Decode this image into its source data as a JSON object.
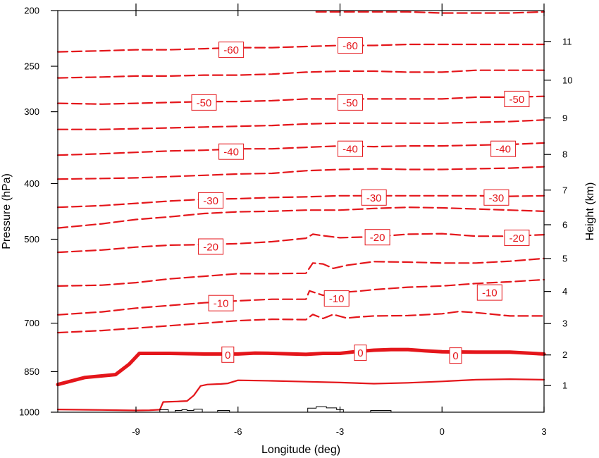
{
  "chart_data": {
    "type": "contour",
    "title": "",
    "xlabel": "Longitude (deg)",
    "ylabel_left": "Pressure (hPa)",
    "ylabel_right": "Height (km)",
    "x_range": [
      -11.3,
      3.0
    ],
    "pressure_range": [
      1000,
      200
    ],
    "y_scale_left": "log-pressure",
    "x_ticks": [
      "-9",
      "-6",
      "-3",
      "0",
      "3"
    ],
    "x_tick_values": [
      -9,
      -6,
      -3,
      0,
      3
    ],
    "pressure_ticks": [
      "200",
      "250",
      "300",
      "400",
      "500",
      "700",
      "850",
      "1000"
    ],
    "pressure_tick_values": [
      200,
      250,
      300,
      400,
      500,
      700,
      850,
      1000
    ],
    "height_ticks": [
      "1",
      "2",
      "3",
      "4",
      "5",
      "6",
      "7",
      "8",
      "9",
      "10",
      "11"
    ],
    "height_tick_values": [
      1,
      2,
      3,
      4,
      5,
      6,
      7,
      8,
      9,
      10,
      11
    ],
    "line_color": "#e4161b",
    "terrain_color": "#000000",
    "contours": [
      {
        "value": 5,
        "style": "solid",
        "points": [
          [
            -11.3,
            989
          ],
          [
            -10,
            991
          ],
          [
            -9,
            993
          ],
          [
            -8.6,
            992
          ],
          [
            -8.3,
            990
          ],
          [
            -8.2,
            960
          ],
          [
            -7.8,
            958
          ],
          [
            -7.5,
            956
          ],
          [
            -7.3,
            935
          ],
          [
            -7.1,
            900
          ],
          [
            -6.9,
            895
          ],
          [
            -6.5,
            893
          ],
          [
            -6.3,
            891
          ],
          [
            -6,
            880
          ],
          [
            -5,
            882
          ],
          [
            -4,
            885
          ],
          [
            -3,
            888
          ],
          [
            -2,
            892
          ],
          [
            -1,
            889
          ],
          [
            0,
            884
          ],
          [
            1,
            878
          ],
          [
            2,
            876
          ],
          [
            3,
            878
          ]
        ]
      },
      {
        "value": 0,
        "style": "bold",
        "points": [
          [
            -11.3,
            895
          ],
          [
            -10.5,
            870
          ],
          [
            -9.6,
            860
          ],
          [
            -9.2,
            825
          ],
          [
            -8.9,
            790
          ],
          [
            -8,
            790
          ],
          [
            -7,
            792
          ],
          [
            -6,
            792
          ],
          [
            -5.5,
            789
          ],
          [
            -5,
            790
          ],
          [
            -4,
            793
          ],
          [
            -3.5,
            790
          ],
          [
            -3,
            790
          ],
          [
            -2.5,
            784
          ],
          [
            -2,
            780
          ],
          [
            -1.5,
            778
          ],
          [
            -1,
            778
          ],
          [
            -0.5,
            782
          ],
          [
            0,
            785
          ],
          [
            1,
            786
          ],
          [
            2,
            786
          ],
          [
            3,
            792
          ]
        ]
      },
      {
        "value": -5,
        "style": "dashed",
        "points": [
          [
            -11.3,
            727
          ],
          [
            -10,
            721
          ],
          [
            -9,
            714
          ],
          [
            -8,
            707
          ],
          [
            -7,
            700
          ],
          [
            -6,
            693
          ],
          [
            -5,
            689
          ],
          [
            -4,
            690
          ],
          [
            -3.8,
            676
          ],
          [
            -3.5,
            687
          ],
          [
            -3.2,
            676
          ],
          [
            -2.8,
            686
          ],
          [
            -2.5,
            683
          ],
          [
            -2,
            680
          ],
          [
            -1,
            679
          ],
          [
            0,
            674
          ],
          [
            0.5,
            668
          ],
          [
            1,
            671
          ],
          [
            2,
            680
          ],
          [
            3,
            680
          ]
        ]
      },
      {
        "value": -10,
        "style": "dashed",
        "points": [
          [
            -11.3,
            677
          ],
          [
            -10,
            669
          ],
          [
            -9,
            659
          ],
          [
            -8,
            652
          ],
          [
            -7,
            645
          ],
          [
            -6,
            640
          ],
          [
            -5,
            636
          ],
          [
            -4,
            636
          ],
          [
            -3.9,
            615
          ],
          [
            -3.5,
            626
          ],
          [
            -3,
            619
          ],
          [
            -2.5,
            616
          ],
          [
            -2,
            612
          ],
          [
            -1,
            606
          ],
          [
            0,
            603
          ],
          [
            1,
            597
          ],
          [
            2,
            593
          ],
          [
            3,
            588
          ]
        ]
      },
      {
        "value": -15,
        "style": "dashed",
        "points": [
          [
            -11.3,
            603
          ],
          [
            -10,
            601
          ],
          [
            -9,
            595
          ],
          [
            -8,
            586
          ],
          [
            -7,
            580
          ],
          [
            -6,
            574
          ],
          [
            -5,
            574
          ],
          [
            -4,
            573
          ],
          [
            -3.8,
            550
          ],
          [
            -3.5,
            552
          ],
          [
            -3.2,
            562
          ],
          [
            -2.8,
            555
          ],
          [
            -2,
            547
          ],
          [
            -1,
            548
          ],
          [
            0,
            550
          ],
          [
            1,
            550
          ],
          [
            2,
            546
          ],
          [
            3,
            540
          ]
        ]
      },
      {
        "value": -20,
        "style": "dashed",
        "points": [
          [
            -11.3,
            527
          ],
          [
            -10,
            522
          ],
          [
            -9,
            516
          ],
          [
            -8,
            512
          ],
          [
            -7,
            511
          ],
          [
            -6,
            509
          ],
          [
            -5,
            505
          ],
          [
            -4,
            498
          ],
          [
            -3.8,
            490
          ],
          [
            -3.5,
            493
          ],
          [
            -3,
            497
          ],
          [
            -2,
            495
          ],
          [
            -1,
            490
          ],
          [
            0,
            489
          ],
          [
            1,
            494
          ],
          [
            2,
            494
          ],
          [
            3,
            491
          ]
        ]
      },
      {
        "value": -25,
        "style": "dashed",
        "points": [
          [
            -11.3,
            478
          ],
          [
            -10,
            470
          ],
          [
            -9,
            462
          ],
          [
            -8,
            457
          ],
          [
            -7,
            451
          ],
          [
            -6,
            448
          ],
          [
            -5,
            447
          ],
          [
            -4,
            445
          ],
          [
            -3,
            445
          ],
          [
            -2,
            442
          ],
          [
            -1,
            440
          ],
          [
            0,
            441
          ],
          [
            1,
            443
          ],
          [
            2,
            445
          ],
          [
            3,
            447
          ]
        ]
      },
      {
        "value": -30,
        "style": "dashed",
        "points": [
          [
            -11.3,
            440
          ],
          [
            -10,
            437
          ],
          [
            -9,
            433
          ],
          [
            -8,
            429
          ],
          [
            -7,
            426
          ],
          [
            -6,
            425
          ],
          [
            -5,
            423
          ],
          [
            -4,
            422
          ],
          [
            -3,
            420
          ],
          [
            -2,
            420
          ],
          [
            -1,
            420
          ],
          [
            0,
            420
          ],
          [
            1,
            420
          ],
          [
            2,
            421
          ],
          [
            3,
            420
          ]
        ]
      },
      {
        "value": -35,
        "style": "dashed",
        "points": [
          [
            -11.3,
            393
          ],
          [
            -10,
            392
          ],
          [
            -9,
            391
          ],
          [
            -8,
            389
          ],
          [
            -7,
            387
          ],
          [
            -6,
            385
          ],
          [
            -5,
            384
          ],
          [
            -4,
            380
          ],
          [
            -3,
            378
          ],
          [
            -2,
            377
          ],
          [
            -1,
            378
          ],
          [
            0,
            378
          ],
          [
            1,
            377
          ],
          [
            2,
            376
          ],
          [
            3,
            374
          ]
        ]
      },
      {
        "value": -40,
        "style": "dashed",
        "points": [
          [
            -11.3,
            357
          ],
          [
            -10,
            355
          ],
          [
            -9,
            353
          ],
          [
            -8,
            351
          ],
          [
            -7,
            350
          ],
          [
            -6,
            348
          ],
          [
            -5,
            348
          ],
          [
            -4,
            346
          ],
          [
            -3,
            344
          ],
          [
            -2,
            345
          ],
          [
            -1,
            344
          ],
          [
            0,
            344
          ],
          [
            1,
            343
          ],
          [
            2,
            342
          ],
          [
            3,
            340
          ]
        ]
      },
      {
        "value": -45,
        "style": "dashed",
        "points": [
          [
            -11.3,
            322
          ],
          [
            -10,
            322
          ],
          [
            -9,
            321
          ],
          [
            -8,
            320
          ],
          [
            -7,
            319
          ],
          [
            -6,
            318
          ],
          [
            -5,
            317
          ],
          [
            -4,
            315
          ],
          [
            -3,
            314
          ],
          [
            -2,
            314
          ],
          [
            -1,
            314
          ],
          [
            0,
            314
          ],
          [
            1,
            313
          ],
          [
            2,
            312
          ],
          [
            3,
            310
          ]
        ]
      },
      {
        "value": -50,
        "style": "dashed",
        "points": [
          [
            -11.3,
            290
          ],
          [
            -10,
            291
          ],
          [
            -9,
            290
          ],
          [
            -8,
            289
          ],
          [
            -7,
            288
          ],
          [
            -6,
            288
          ],
          [
            -5,
            287
          ],
          [
            -4,
            285
          ],
          [
            -3,
            285
          ],
          [
            -2,
            285
          ],
          [
            -1,
            285
          ],
          [
            0,
            285
          ],
          [
            1,
            283
          ],
          [
            2,
            283
          ],
          [
            3,
            282
          ]
        ]
      },
      {
        "value": -55,
        "style": "dashed",
        "points": [
          [
            -11.3,
            262
          ],
          [
            -10,
            261
          ],
          [
            -9,
            260
          ],
          [
            -8,
            260
          ],
          [
            -7,
            259
          ],
          [
            -6,
            259
          ],
          [
            -5,
            258
          ],
          [
            -4,
            256
          ],
          [
            -3,
            255
          ],
          [
            -2,
            255
          ],
          [
            -1,
            256
          ],
          [
            0,
            256
          ],
          [
            1,
            254
          ],
          [
            2,
            254
          ],
          [
            3,
            254
          ]
        ]
      },
      {
        "value": -60,
        "style": "dashed",
        "points": [
          [
            -11.3,
            236
          ],
          [
            -10,
            235
          ],
          [
            -9,
            234
          ],
          [
            -8,
            234
          ],
          [
            -7,
            233
          ],
          [
            -6,
            232
          ],
          [
            -5,
            232
          ],
          [
            -4,
            231
          ],
          [
            -3,
            230
          ],
          [
            -2,
            230
          ],
          [
            -1,
            229
          ],
          [
            0,
            229
          ],
          [
            1,
            229
          ],
          [
            2,
            229
          ],
          [
            3,
            229
          ]
        ]
      },
      {
        "value": -65,
        "style": "dashed",
        "points": [
          [
            -3.7,
            201
          ],
          [
            -3,
            201
          ],
          [
            -1,
            201
          ],
          [
            0,
            202
          ],
          [
            1,
            202
          ],
          [
            2,
            202
          ],
          [
            3,
            201
          ]
        ]
      }
    ],
    "contour_labels": [
      {
        "text": "-60",
        "x": -6.2,
        "p": 234
      },
      {
        "text": "-60",
        "x": -2.7,
        "p": 230
      },
      {
        "text": "-50",
        "x": -7.0,
        "p": 289
      },
      {
        "text": "-50",
        "x": -2.7,
        "p": 289
      },
      {
        "text": "-50",
        "x": 2.2,
        "p": 285
      },
      {
        "text": "-40",
        "x": -6.2,
        "p": 352
      },
      {
        "text": "-40",
        "x": -2.7,
        "p": 348
      },
      {
        "text": "-40",
        "x": 1.8,
        "p": 348
      },
      {
        "text": "-30",
        "x": -6.8,
        "p": 428
      },
      {
        "text": "-30",
        "x": -2.0,
        "p": 423
      },
      {
        "text": "-30",
        "x": 1.6,
        "p": 423
      },
      {
        "text": "-20",
        "x": -6.8,
        "p": 515
      },
      {
        "text": "-20",
        "x": -1.9,
        "p": 496
      },
      {
        "text": "-20",
        "x": 2.2,
        "p": 497
      },
      {
        "text": "-10",
        "x": -6.5,
        "p": 646
      },
      {
        "text": "-10",
        "x": -3.1,
        "p": 634
      },
      {
        "text": "-10",
        "x": 1.4,
        "p": 619
      },
      {
        "text": "0",
        "x": -6.3,
        "p": 794
      },
      {
        "text": "0",
        "x": -2.4,
        "p": 788
      },
      {
        "text": "0",
        "x": 0.4,
        "p": 797
      }
    ],
    "terrain_outline": [
      [
        -8.3,
        1000
      ],
      [
        -8.3,
        990
      ],
      [
        -8.05,
        990
      ],
      [
        -8.05,
        1000
      ],
      [
        -7.85,
        1000
      ],
      [
        -7.85,
        993
      ],
      [
        -7.65,
        993
      ],
      [
        -7.65,
        990
      ],
      [
        -7.5,
        990
      ],
      [
        -7.5,
        993
      ],
      [
        -7.3,
        993
      ],
      [
        -7.3,
        988
      ],
      [
        -7.05,
        988
      ],
      [
        -7.05,
        1000
      ],
      [
        -6.6,
        1000
      ],
      [
        -6.6,
        993
      ],
      [
        -6.25,
        993
      ],
      [
        -6.25,
        1000
      ],
      [
        -3.95,
        1000
      ],
      [
        -3.95,
        984
      ],
      [
        -3.7,
        984
      ],
      [
        -3.7,
        978
      ],
      [
        -3.4,
        978
      ],
      [
        -3.4,
        983
      ],
      [
        -3.1,
        983
      ],
      [
        -3.1,
        990
      ],
      [
        -2.9,
        990
      ],
      [
        -2.9,
        1000
      ],
      [
        -2.1,
        1000
      ],
      [
        -2.1,
        993
      ],
      [
        -1.5,
        993
      ],
      [
        -1.5,
        1000
      ]
    ]
  }
}
